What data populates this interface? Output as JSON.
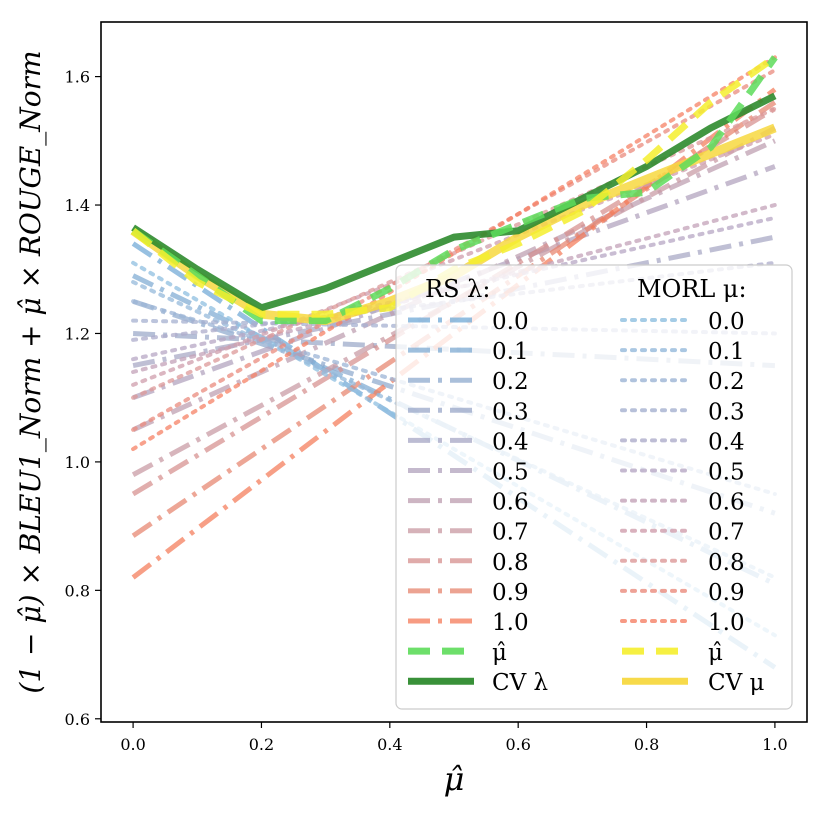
{
  "chart_data": {
    "type": "line",
    "title": "",
    "xlabel": "μ̂",
    "ylabel": "(1 − μ̂) × BLEU1_Norm + μ̂ × ROUGE_Norm",
    "xlim": [
      -0.05,
      1.05
    ],
    "ylim": [
      0.595,
      1.685
    ],
    "xticks": [
      0.0,
      0.2,
      0.4,
      0.6,
      0.8,
      1.0
    ],
    "yticks": [
      0.6,
      0.8,
      1.0,
      1.2,
      1.4,
      1.6
    ],
    "xtick_labels": [
      "0.0",
      "0.2",
      "0.4",
      "0.6",
      "0.8",
      "1.0"
    ],
    "ytick_labels": [
      "0.6",
      "0.8",
      "1.0",
      "1.2",
      "1.4",
      "1.6"
    ],
    "grid": false,
    "legend": {
      "location": "lower-right",
      "left_header": "RS λ:",
      "right_header": "MORL μ:",
      "left_entries": [
        "0.0",
        "0.1",
        "0.2",
        "0.3",
        "0.4",
        "0.5",
        "0.6",
        "0.7",
        "0.8",
        "0.9",
        "1.0",
        "μ̂",
        "CV λ"
      ],
      "right_entries": [
        "0.0",
        "0.1",
        "0.2",
        "0.3",
        "0.4",
        "0.5",
        "0.6",
        "0.7",
        "0.8",
        "0.9",
        "1.0",
        "μ̂",
        "CV μ"
      ]
    },
    "rs_lines": [
      {
        "name": "0.0",
        "color": "#6fa8d6",
        "y0": 1.34,
        "y1": 0.68
      },
      {
        "name": "0.1",
        "color": "#7eaad2",
        "y0": 1.29,
        "y1": 0.81
      },
      {
        "name": "0.2",
        "color": "#8ea9cd",
        "y0": 1.25,
        "y1": 0.92
      },
      {
        "name": "0.3",
        "color": "#9aa7c8",
        "y0": 1.2,
        "y1": 1.15
      },
      {
        "name": "0.4",
        "color": "#a6a6c4",
        "y0": 1.15,
        "y1": 1.35
      },
      {
        "name": "0.5",
        "color": "#b0a1bc",
        "y0": 1.1,
        "y1": 1.46
      },
      {
        "name": "0.6",
        "color": "#bc9caf",
        "y0": 1.05,
        "y1": 1.5
      },
      {
        "name": "0.7",
        "color": "#c898a2",
        "y0": 0.98,
        "y1": 1.52
      },
      {
        "name": "0.8",
        "color": "#d58f8e",
        "y0": 0.95,
        "y1": 1.55
      },
      {
        "name": "0.9",
        "color": "#e6846d",
        "y0": 0.885,
        "y1": 1.56
      },
      {
        "name": "1.0",
        "color": "#f47a58",
        "y0": 0.82,
        "y1": 1.58
      }
    ],
    "morl_lines": [
      {
        "name": "0.0",
        "color": "#8fbfe0",
        "y0": 1.31,
        "y1": 0.73
      },
      {
        "name": "0.1",
        "color": "#95b9db",
        "y0": 1.28,
        "y1": 0.82
      },
      {
        "name": "0.2",
        "color": "#9cb4d5",
        "y0": 1.25,
        "y1": 0.95
      },
      {
        "name": "0.3",
        "color": "#a5b0d0",
        "y0": 1.22,
        "y1": 1.2
      },
      {
        "name": "0.4",
        "color": "#aeaccb",
        "y0": 1.19,
        "y1": 1.31
      },
      {
        "name": "0.5",
        "color": "#b7a7c4",
        "y0": 1.16,
        "y1": 1.38
      },
      {
        "name": "0.6",
        "color": "#c3a2b8",
        "y0": 1.14,
        "y1": 1.4
      },
      {
        "name": "0.7",
        "color": "#cf9eac",
        "y0": 1.12,
        "y1": 1.51
      },
      {
        "name": "0.8",
        "color": "#dc9898",
        "y0": 1.1,
        "y1": 1.55
      },
      {
        "name": "0.9",
        "color": "#ea8b7d",
        "y0": 1.05,
        "y1": 1.61
      },
      {
        "name": "1.0",
        "color": "#f58166",
        "y0": 1.02,
        "y1": 1.63
      }
    ],
    "rs_mu_hat": {
      "name": "μ̂",
      "color": "#5ddc5a",
      "x": [
        0.0,
        0.1,
        0.2,
        0.3,
        0.4,
        0.5,
        0.6,
        0.7,
        0.8,
        0.9,
        1.0
      ],
      "y": [
        1.36,
        1.29,
        1.22,
        1.22,
        1.27,
        1.33,
        1.37,
        1.41,
        1.42,
        1.49,
        1.63
      ]
    },
    "cv_lambda": {
      "name": "CV λ",
      "color": "#2e8b2e",
      "x": [
        0.0,
        0.1,
        0.2,
        0.3,
        0.4,
        0.5,
        0.6,
        0.7,
        0.8,
        0.9,
        1.0
      ],
      "y": [
        1.365,
        1.3,
        1.24,
        1.27,
        1.31,
        1.35,
        1.36,
        1.41,
        1.46,
        1.52,
        1.57
      ]
    },
    "morl_mu_hat": {
      "name": "μ̂",
      "color": "#f5ee2e",
      "x": [
        0.0,
        0.1,
        0.2,
        0.3,
        0.4,
        0.5,
        0.6,
        0.7,
        0.8,
        0.9,
        1.0
      ],
      "y": [
        1.36,
        1.28,
        1.23,
        1.23,
        1.24,
        1.3,
        1.34,
        1.39,
        1.47,
        1.56,
        1.63
      ]
    },
    "cv_mu": {
      "name": "CV μ",
      "color": "#f7d840",
      "x": [
        0.0,
        0.1,
        0.2,
        0.3,
        0.4,
        0.5,
        0.6,
        0.7,
        0.8,
        0.9,
        1.0
      ],
      "y": [
        1.36,
        1.29,
        1.23,
        1.22,
        1.25,
        1.29,
        1.35,
        1.4,
        1.44,
        1.48,
        1.52
      ]
    }
  }
}
